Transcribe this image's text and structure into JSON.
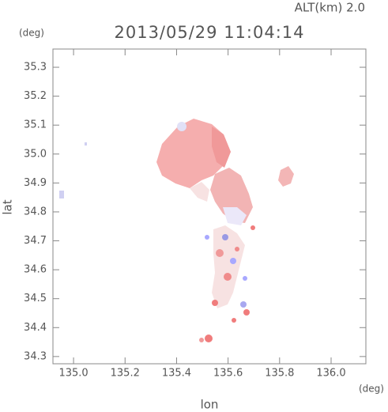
{
  "chart_data": {
    "type": "map",
    "title": "2013/05/29 11:04:14",
    "subtitle": "ALT(km) 2.0",
    "y_unit": "(deg)",
    "x_unit": "(deg)",
    "xlabel": "lon",
    "ylabel": "lat",
    "xlim": [
      134.92,
      136.135
    ],
    "ylim": [
      34.275,
      35.363
    ],
    "xticks": [
      {
        "value": 135,
        "label": "135.0"
      },
      135.2,
      135.4,
      135.6,
      135.8,
      {
        "value": 136,
        "label": "136.0"
      }
    ],
    "yticks": [
      34.3,
      34.4,
      34.5,
      34.6,
      34.7,
      34.8,
      34.9,
      {
        "value": 35,
        "label": "35.0"
      },
      35.1,
      35.2,
      35.3
    ]
  }
}
